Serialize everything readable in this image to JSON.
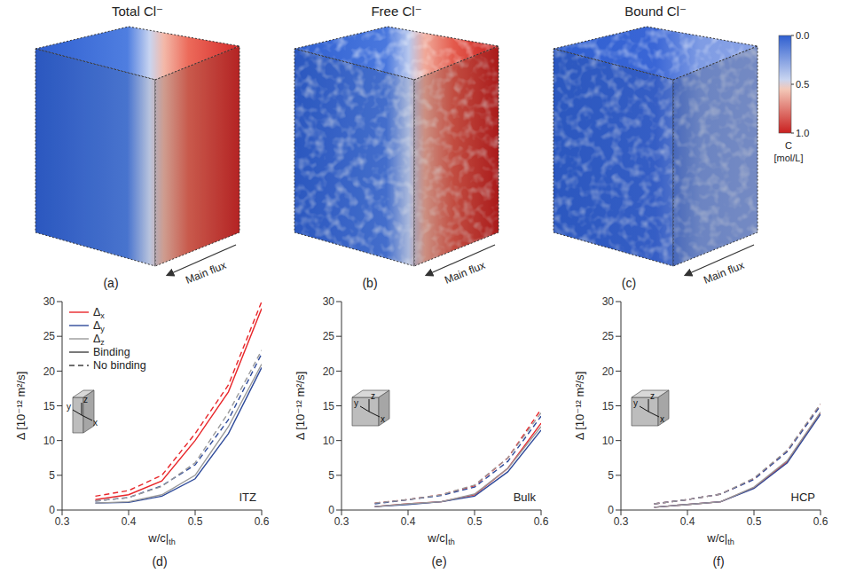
{
  "cubes": [
    {
      "title": "Total Cl⁻",
      "letter": "(a)",
      "annotation": "Main flux"
    },
    {
      "title": "Free Cl⁻",
      "letter": "(b)",
      "annotation": "Main flux"
    },
    {
      "title": "Bound Cl⁻",
      "letter": "(c)",
      "annotation": "Main flux"
    }
  ],
  "colorbar": {
    "range": [
      0,
      1
    ],
    "ticks": [
      {
        "value": 0,
        "label": "0.0"
      },
      {
        "value": 0.5,
        "label": "0.5"
      },
      {
        "value": 1,
        "label": "1.0"
      }
    ],
    "label": "C [mol/L]"
  },
  "chart_data": [
    {
      "type": "line",
      "letter": "(d)",
      "annotation": "ITZ",
      "inset_labels": [
        "x",
        "y",
        "z"
      ],
      "xlabel": "w/c|th",
      "ylabel": "Δ [10⁻¹² m²/s]",
      "x": [
        0.35,
        0.4,
        0.45,
        0.5,
        0.55,
        0.6
      ],
      "xlim": [
        0.3,
        0.6
      ],
      "xticks": [
        0.3,
        0.4,
        0.5,
        0.6
      ],
      "ylim": [
        0,
        30
      ],
      "yticks": [
        0,
        5,
        10,
        15,
        20,
        25,
        30
      ],
      "legend": "upper left",
      "legend_styles": [
        {
          "name": "Binding",
          "line_style": "solid"
        },
        {
          "name": "No binding",
          "line_style": "dashed"
        }
      ],
      "series": [
        {
          "name": "Δx",
          "color": "#e8262a",
          "line_style": "solid",
          "values": [
            1.5,
            2.2,
            4.2,
            10,
            17,
            29
          ]
        },
        {
          "name": "Δx",
          "color": "#e8262a",
          "line_style": "dashed",
          "values": [
            2,
            2.8,
            5,
            11,
            18,
            30
          ]
        },
        {
          "name": "Δy",
          "color": "#2e4a9a",
          "line_style": "solid",
          "values": [
            1,
            1.1,
            2,
            4.5,
            11,
            20.5
          ]
        },
        {
          "name": "Δy",
          "color": "#2e4a9a",
          "line_style": "dashed",
          "values": [
            1.3,
            1.8,
            3.5,
            6.5,
            13,
            22.5
          ]
        },
        {
          "name": "Δz",
          "color": "#9a9a9a",
          "line_style": "solid",
          "values": [
            1,
            1.2,
            2.2,
            5,
            12,
            21
          ]
        },
        {
          "name": "Δz",
          "color": "#9a9a9a",
          "line_style": "dashed",
          "values": [
            1.3,
            1.8,
            3.4,
            6.8,
            14,
            23
          ]
        }
      ]
    },
    {
      "type": "line",
      "letter": "(e)",
      "annotation": "Bulk",
      "inset_labels": [
        "x",
        "y",
        "z"
      ],
      "xlabel": "w/c|th",
      "ylabel": "Δ [10⁻¹² m²/s]",
      "x": [
        0.35,
        0.4,
        0.45,
        0.5,
        0.55,
        0.6
      ],
      "xlim": [
        0.3,
        0.6
      ],
      "xticks": [
        0.3,
        0.4,
        0.5,
        0.6
      ],
      "ylim": [
        0,
        30
      ],
      "yticks": [
        0,
        5,
        10,
        15,
        20,
        25,
        30
      ],
      "series": [
        {
          "name": "Δx",
          "color": "#e8262a",
          "line_style": "solid",
          "values": [
            0.5,
            0.9,
            1.2,
            2.2,
            6,
            12.5
          ]
        },
        {
          "name": "Δx",
          "color": "#e8262a",
          "line_style": "dashed",
          "values": [
            1,
            1.5,
            2.2,
            3.5,
            7.5,
            14.5
          ]
        },
        {
          "name": "Δy",
          "color": "#2e4a9a",
          "line_style": "solid",
          "values": [
            0.5,
            0.8,
            1.2,
            2,
            5.5,
            11.5
          ]
        },
        {
          "name": "Δy",
          "color": "#2e4a9a",
          "line_style": "dashed",
          "values": [
            0.9,
            1.5,
            2.1,
            3.3,
            7,
            13.5
          ]
        },
        {
          "name": "Δz",
          "color": "#9a9a9a",
          "line_style": "solid",
          "values": [
            0.5,
            0.9,
            1.2,
            2.3,
            6,
            12
          ]
        },
        {
          "name": "Δz",
          "color": "#9a9a9a",
          "line_style": "dashed",
          "values": [
            1,
            1.5,
            2.2,
            3.6,
            7.5,
            14
          ]
        }
      ]
    },
    {
      "type": "line",
      "letter": "(f)",
      "annotation": "HCP",
      "inset_labels": [
        "x",
        "y",
        "z"
      ],
      "xlabel": "w/c|th",
      "ylabel": "Δ [10⁻¹² m²/s]",
      "x": [
        0.35,
        0.4,
        0.45,
        0.5,
        0.55,
        0.6
      ],
      "xlim": [
        0.3,
        0.6
      ],
      "xticks": [
        0.3,
        0.4,
        0.5,
        0.6
      ],
      "ylim": [
        0,
        30
      ],
      "yticks": [
        0,
        5,
        10,
        15,
        20,
        25,
        30
      ],
      "series": [
        {
          "name": "Δx",
          "color": "#e8262a",
          "line_style": "solid",
          "values": [
            0.4,
            0.8,
            1.2,
            3.2,
            7,
            14
          ]
        },
        {
          "name": "Δx",
          "color": "#e8262a",
          "line_style": "dashed",
          "values": [
            0.9,
            1.5,
            2.3,
            4.5,
            8.5,
            15.2
          ]
        },
        {
          "name": "Δy",
          "color": "#2e4a9a",
          "line_style": "solid",
          "values": [
            0.4,
            0.8,
            1.2,
            3.1,
            6.8,
            13.8
          ]
        },
        {
          "name": "Δy",
          "color": "#2e4a9a",
          "line_style": "dashed",
          "values": [
            0.9,
            1.5,
            2.3,
            4.4,
            8.4,
            15
          ]
        },
        {
          "name": "Δz",
          "color": "#9a9a9a",
          "line_style": "solid",
          "values": [
            0.4,
            0.8,
            1.2,
            3.3,
            7.1,
            14.1
          ]
        },
        {
          "name": "Δz",
          "color": "#9a9a9a",
          "line_style": "dashed",
          "values": [
            0.9,
            1.5,
            2.3,
            4.6,
            8.6,
            15.3
          ]
        }
      ]
    }
  ]
}
